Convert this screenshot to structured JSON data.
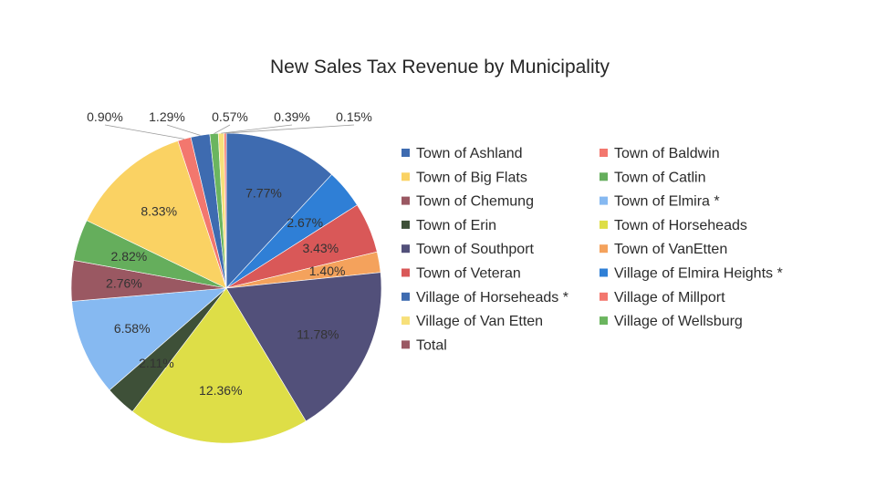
{
  "chart_data": {
    "type": "pie",
    "title": "New Sales Tax Revenue by Municipality",
    "legend_position": "right",
    "legend_columns": 2,
    "slices": [
      {
        "name": "Town of Ashland",
        "value": 7.77,
        "label": "7.77%",
        "color": "#3e6bb0"
      },
      {
        "name": "Village of Elmira Heights *",
        "value": 2.67,
        "label": "2.67%",
        "color": "#2f7fd6"
      },
      {
        "name": "Town of Veteran",
        "value": 3.43,
        "label": "3.43%",
        "color": "#d95858"
      },
      {
        "name": "Town of VanEtten",
        "value": 1.4,
        "label": "1.40%",
        "color": "#f4a25c"
      },
      {
        "name": "Town of Southport",
        "value": 11.78,
        "label": "11.78%",
        "color": "#52507a"
      },
      {
        "name": "Town of Horseheads",
        "value": 12.36,
        "label": "12.36%",
        "color": "#dede47"
      },
      {
        "name": "Town of Erin",
        "value": 2.11,
        "label": "2.11%",
        "color": "#3e5038"
      },
      {
        "name": "Town of Elmira *",
        "value": 6.58,
        "label": "6.58%",
        "color": "#86b9f1"
      },
      {
        "name": "Town of Chemung",
        "value": 2.76,
        "label": "2.76%",
        "color": "#9a5862"
      },
      {
        "name": "Town of Catlin",
        "value": 2.82,
        "label": "2.82%",
        "color": "#65ae5c"
      },
      {
        "name": "Town of Big Flats",
        "value": 8.33,
        "label": "8.33%",
        "color": "#fad263"
      },
      {
        "name": "Village of Millport",
        "value": 0.9,
        "label": "0.90%",
        "color": "#f3776e"
      },
      {
        "name": "Village of Horseheads *",
        "value": 1.29,
        "label": "1.29%",
        "color": "#3e6bb0"
      },
      {
        "name": "Village of Wellsburg",
        "value": 0.57,
        "label": "0.57%",
        "color": "#6bb55f"
      },
      {
        "name": "Village of Van Etten",
        "value": 0.39,
        "label": "0.39%",
        "color": "#f7e07a"
      },
      {
        "name": "Town of Baldwin",
        "value": 0.15,
        "label": "0.15%",
        "color": "#f3776e"
      }
    ],
    "legend": [
      {
        "name": "Town of Ashland",
        "color": "#3e6bb0"
      },
      {
        "name": "Town of Baldwin",
        "color": "#f3776e"
      },
      {
        "name": "Town of Big Flats",
        "color": "#fad263"
      },
      {
        "name": "Town of Catlin",
        "color": "#65ae5c"
      },
      {
        "name": "Town of Chemung",
        "color": "#9a5862"
      },
      {
        "name": "Town of Elmira *",
        "color": "#86b9f1"
      },
      {
        "name": "Town of Erin",
        "color": "#3e5038"
      },
      {
        "name": "Town of Horseheads",
        "color": "#dede47"
      },
      {
        "name": "Town of Southport",
        "color": "#52507a"
      },
      {
        "name": "Town of VanEtten",
        "color": "#f4a25c"
      },
      {
        "name": "Town of Veteran",
        "color": "#d95858"
      },
      {
        "name": "Village of Elmira Heights *",
        "color": "#2f7fd6"
      },
      {
        "name": "Village of Horseheads *",
        "color": "#3e6bb0"
      },
      {
        "name": "Village of Millport",
        "color": "#f3776e"
      },
      {
        "name": "Village of Van Etten",
        "color": "#f7e07a"
      },
      {
        "name": "Village of Wellsburg",
        "color": "#6bb55f"
      },
      {
        "name": "Total",
        "color": "#9a5862"
      }
    ]
  }
}
